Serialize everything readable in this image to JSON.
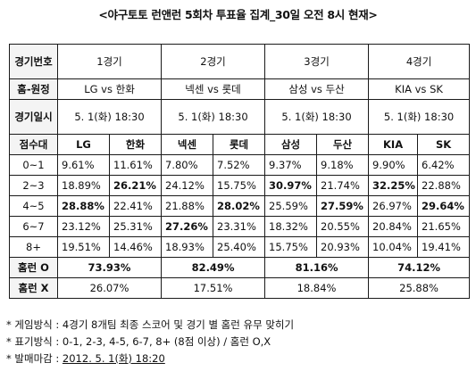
{
  "title": "<야구토토 런앤런 5회차 투표율 집계_30일 오전 8시 현재>",
  "labels": {
    "game_no": "경기번호",
    "home_away": "홈-원정",
    "game_time": "경기일시",
    "score_range": "점수대",
    "homerun_o": "홈런 O",
    "homerun_x": "홈런 X"
  },
  "games": [
    {
      "no": "1경기",
      "matchup": "LG vs 한화",
      "time": "5. 1(화) 18:30",
      "team1": "LG",
      "team2": "한화",
      "homerun_o": "73.93%",
      "homerun_x": "26.07%"
    },
    {
      "no": "2경기",
      "matchup": "넥센 vs 롯데",
      "time": "5. 1(화) 18:30",
      "team1": "넥센",
      "team2": "롯데",
      "homerun_o": "82.49%",
      "homerun_x": "17.51%"
    },
    {
      "no": "3경기",
      "matchup": "삼성 vs 두산",
      "time": "5. 1(화) 18:30",
      "team1": "삼성",
      "team2": "두산",
      "homerun_o": "81.16%",
      "homerun_x": "18.84%"
    },
    {
      "no": "4경기",
      "matchup": "KIA vs SK",
      "time": "5. 1(화) 18:30",
      "team1": "KIA",
      "team2": "SK",
      "homerun_o": "74.12%",
      "homerun_x": "25.88%"
    }
  ],
  "rows": [
    {
      "range": "0~1",
      "values": [
        "9.61%",
        "11.61%",
        "7.80%",
        "7.52%",
        "9.37%",
        "9.18%",
        "9.90%",
        "6.42%"
      ],
      "bold": []
    },
    {
      "range": "2~3",
      "values": [
        "18.89%",
        "26.21%",
        "24.12%",
        "15.75%",
        "30.97%",
        "21.74%",
        "32.25%",
        "22.88%"
      ],
      "bold": [
        1,
        4,
        6
      ]
    },
    {
      "range": "4~5",
      "values": [
        "28.88%",
        "22.41%",
        "21.88%",
        "28.02%",
        "25.59%",
        "27.59%",
        "26.97%",
        "29.64%"
      ],
      "bold": [
        0,
        3,
        5,
        7
      ]
    },
    {
      "range": "6~7",
      "values": [
        "23.12%",
        "25.31%",
        "27.26%",
        "23.31%",
        "18.32%",
        "20.55%",
        "20.84%",
        "21.65%"
      ],
      "bold": [
        2
      ]
    },
    {
      "range": "8+",
      "values": [
        "19.51%",
        "14.46%",
        "18.93%",
        "25.40%",
        "15.75%",
        "20.93%",
        "10.04%",
        "19.41%"
      ],
      "bold": []
    }
  ],
  "notes": [
    {
      "prefix": "* 게임방식 : ",
      "text": "4경기 8개팀 최종 스코어 및 경기 별 홈런 유무 맞히기",
      "underline": ""
    },
    {
      "prefix": "* 표기방식 : ",
      "text": "0-1, 2-3, 4-5, 6-7, 8+ (8점 이상) / 홈런 O,X",
      "underline": ""
    },
    {
      "prefix": "* 발매마감 : ",
      "text": "",
      "underline": "2012. 5. 1(화) 18:20"
    }
  ]
}
